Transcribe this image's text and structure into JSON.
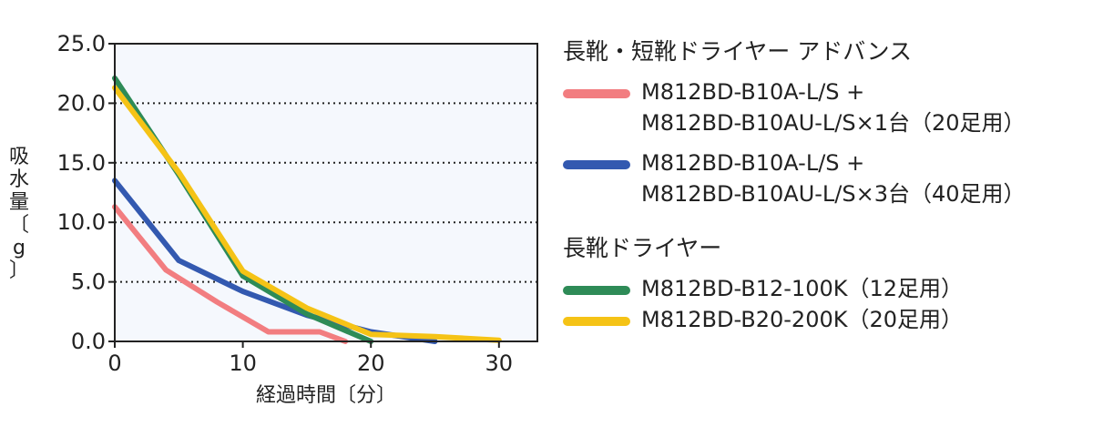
{
  "chart_data": {
    "type": "line",
    "xlabel": "経過時間〔分〕",
    "ylabel_chars": [
      "吸",
      "水",
      "量",
      "〔",
      "g",
      "〕"
    ],
    "xlim": [
      0,
      33
    ],
    "ylim": [
      0,
      25
    ],
    "xticks": [
      "0",
      "10",
      "20",
      "30"
    ],
    "yticks": [
      "0.0",
      "5.0",
      "10.0",
      "15.0",
      "20.0",
      "25.0"
    ],
    "grid": "horizontal dotted",
    "plot_background": "#f5f8fd",
    "legend_position": "right",
    "legend_groups": [
      {
        "title": "長靴・短靴ドライヤー アドバンス",
        "series_index": [
          0,
          1
        ]
      },
      {
        "title": "長靴ドライヤー",
        "series_index": [
          2,
          3
        ]
      }
    ],
    "series": [
      {
        "name_lines": [
          "M812BD-B10A-L/S +",
          "M812BD-B10AU-L/S×1台（20足用）"
        ],
        "color": "#f27d80",
        "x": [
          0,
          4,
          8,
          12,
          16,
          18
        ],
        "y": [
          11.3,
          6.0,
          3.3,
          0.8,
          0.8,
          0.0
        ]
      },
      {
        "name_lines": [
          "M812BD-B10A-L/S +",
          "M812BD-B10AU-L/S×3台（40足用）"
        ],
        "color": "#3359b0",
        "x": [
          0,
          5,
          10,
          15,
          20,
          25
        ],
        "y": [
          13.5,
          6.8,
          4.2,
          2.2,
          0.8,
          0.0
        ]
      },
      {
        "name_lines": [
          "M812BD-B12-100K（12足用）"
        ],
        "color": "#2e8b57",
        "x": [
          0,
          5,
          10,
          15,
          20
        ],
        "y": [
          22.1,
          14.0,
          5.5,
          2.3,
          0.0
        ]
      },
      {
        "name_lines": [
          "M812BD-B20-200K（20足用）"
        ],
        "color": "#f5c316",
        "x": [
          0,
          5,
          10,
          15,
          20,
          25,
          30
        ],
        "y": [
          21.3,
          14.2,
          5.9,
          2.8,
          0.6,
          0.4,
          0.1
        ]
      }
    ]
  }
}
